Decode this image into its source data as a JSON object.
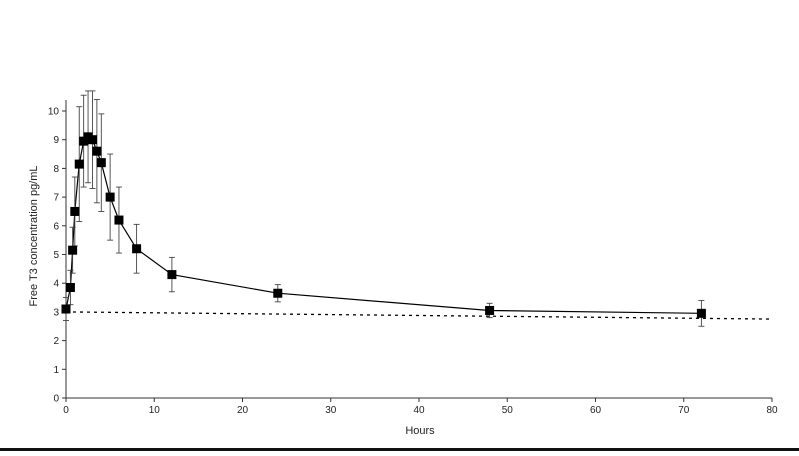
{
  "chart_data": {
    "type": "line",
    "title": "",
    "xlabel": "Hours",
    "ylabel": "Free T3 concentration pg/mL",
    "xlim": [
      0,
      80
    ],
    "ylim": [
      0,
      10.5
    ],
    "x_ticks": [
      0,
      10,
      20,
      30,
      40,
      50,
      60,
      70,
      80
    ],
    "y_ticks": [
      0,
      1,
      2,
      3,
      4,
      5,
      6,
      7,
      8,
      9,
      10
    ],
    "grid": false,
    "legend": "none",
    "series": [
      {
        "marker": "filled-square",
        "color": "#000000",
        "x": [
          0,
          0.5,
          0.75,
          1,
          1.5,
          2,
          2.5,
          3,
          3.5,
          4,
          5,
          6,
          8,
          12,
          24,
          48,
          72
        ],
        "y": [
          3.1,
          3.85,
          5.15,
          6.5,
          8.15,
          8.95,
          9.1,
          9.0,
          8.6,
          8.2,
          7.0,
          6.2,
          5.2,
          4.3,
          3.65,
          3.05,
          2.95
        ],
        "error": [
          0.4,
          0.6,
          0.8,
          1.2,
          2.0,
          1.6,
          1.6,
          1.7,
          1.8,
          1.7,
          1.5,
          1.15,
          0.85,
          0.6,
          0.3,
          0.25,
          0.45
        ]
      }
    ],
    "baseline": {
      "style": "dotted",
      "color": "#000000",
      "x": [
        0,
        80
      ],
      "y": [
        3.0,
        2.75
      ]
    }
  }
}
